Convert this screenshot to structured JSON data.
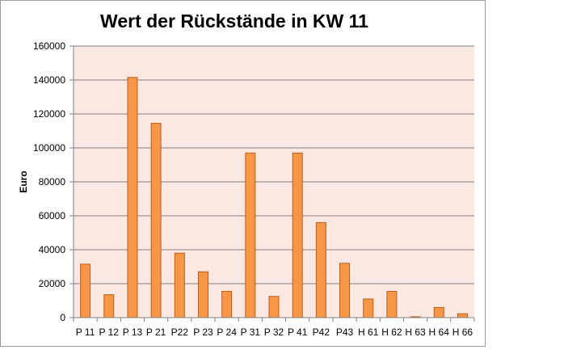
{
  "chart_data": {
    "type": "bar",
    "title": "Wert der Rückstände in KW 11",
    "xlabel": "",
    "ylabel": "Euro",
    "ylim": [
      0,
      160000
    ],
    "yticks": [
      0,
      20000,
      40000,
      60000,
      80000,
      100000,
      120000,
      140000,
      160000
    ],
    "grid": true,
    "legend": "none",
    "categories": [
      "P 11",
      "P 12",
      "P 13",
      "P 21",
      "P22",
      "P 23",
      "P 24",
      "P 31",
      "P 32",
      "P 41",
      "P42",
      "P43",
      "H 61",
      "H 62",
      "H 63",
      "H 64",
      "H 66"
    ],
    "values": [
      31500,
      13500,
      141500,
      114500,
      38000,
      27000,
      15500,
      97000,
      12500,
      97000,
      56000,
      32000,
      11000,
      15500,
      500,
      6000,
      2300
    ]
  },
  "colors": {
    "plot_background": "#fce8e2",
    "bar_fill": "#f79646",
    "bar_stroke": "#b85f1a",
    "gridline": "#808080",
    "axis": "#808080"
  }
}
